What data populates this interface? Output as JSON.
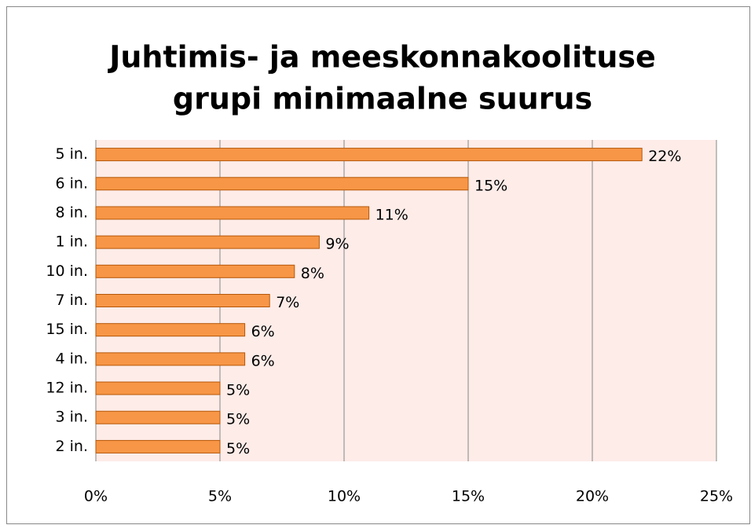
{
  "chart_data": {
    "type": "bar",
    "orientation": "horizontal",
    "title": [
      "Juhtimis- ja meeskonnakoolituse",
      "grupi minimaalne suurus"
    ],
    "categories": [
      "5 in.",
      "6 in.",
      "8 in.",
      "1 in.",
      "10 in.",
      "7 in.",
      "15 in.",
      "4 in.",
      "12 in.",
      "3 in.",
      "2 in."
    ],
    "values": [
      22,
      15,
      11,
      9,
      8,
      7,
      6,
      6,
      5,
      5,
      5
    ],
    "value_labels": [
      "22%",
      "15%",
      "11%",
      "9%",
      "8%",
      "7%",
      "6%",
      "6%",
      "5%",
      "5%",
      "5%"
    ],
    "color": "#f79646",
    "edge_color": "#b65708",
    "plot_background": "#fdece8",
    "xlim": [
      0,
      25
    ],
    "xticks": [
      {
        "value": 0,
        "label": "0%"
      },
      {
        "value": 5,
        "label": "5%"
      },
      {
        "value": 10,
        "label": "10%"
      },
      {
        "value": 15,
        "label": "15%"
      },
      {
        "value": 20,
        "label": "20%"
      },
      {
        "value": 25,
        "label": "25%"
      }
    ],
    "grid": true
  }
}
